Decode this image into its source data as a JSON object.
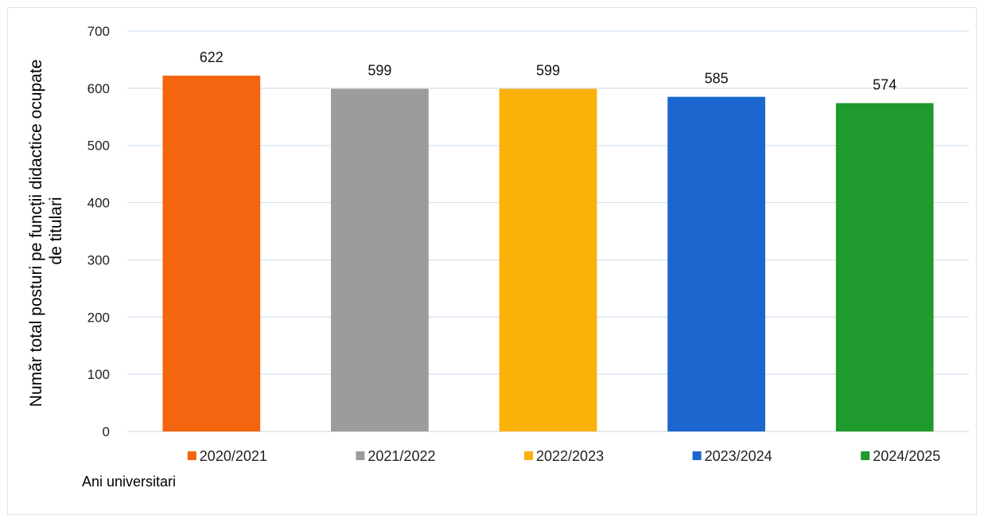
{
  "chart_data": {
    "type": "bar",
    "categories": [
      "2020/2021",
      "2021/2022",
      "2022/2023",
      "2023/2024",
      "2024/2025"
    ],
    "values": [
      622,
      599,
      599,
      585,
      574
    ],
    "colors": [
      "#f4650f",
      "#9c9c9c",
      "#fbb208",
      "#1b67cf",
      "#1f9a2c"
    ],
    "ylabel_lines": [
      "Număr total posturi pe funcții didactice ocupate",
      "de titulari"
    ],
    "xlabel": "Ani universitari",
    "ylim": [
      0,
      700
    ],
    "yticks": [
      0,
      100,
      200,
      300,
      400,
      500,
      600,
      700
    ],
    "grid": true,
    "legend_position": "bottom",
    "data_labels": true
  }
}
